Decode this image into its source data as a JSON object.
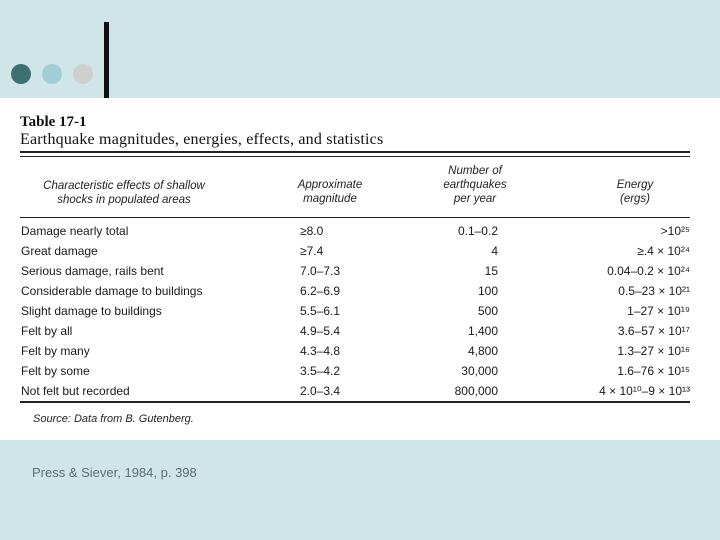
{
  "slide": {
    "caption": "Press & Siever, 1984, p. 398"
  },
  "table": {
    "label": "Table 17-1",
    "title": "Earthquake magnitudes, energies, effects, and statistics",
    "headers": {
      "effects_line1": "Characteristic effects of shallow",
      "effects_line2": "shocks in populated areas",
      "magnitude_line1": "Approximate",
      "magnitude_line2": "magnitude",
      "number_line1": "Number of",
      "number_line2": "earthquakes",
      "number_line3": "per year",
      "energy_line1": "Energy",
      "energy_line2": "(ergs)"
    },
    "rows": [
      {
        "effect": "Damage nearly total",
        "magnitude": "≥8.0",
        "number": "0.1–0.2",
        "energy": ">10²⁵"
      },
      {
        "effect": "Great damage",
        "magnitude": "≥7.4",
        "number": "4",
        "energy": "≥.4 × 10²⁴"
      },
      {
        "effect": "Serious damage, rails bent",
        "magnitude": "7.0–7.3",
        "number": "15",
        "energy": "0.04–0.2 × 10²⁴"
      },
      {
        "effect": "Considerable damage to buildings",
        "magnitude": "6.2–6.9",
        "number": "100",
        "energy": "0.5–23 × 10²¹"
      },
      {
        "effect": "Slight damage to buildings",
        "magnitude": "5.5–6.1",
        "number": "500",
        "energy": "1–27 × 10¹⁹"
      },
      {
        "effect": "Felt by all",
        "magnitude": "4.9–5.4",
        "number": "1,400",
        "energy": "3.6–57 × 10¹⁷"
      },
      {
        "effect": "Felt by many",
        "magnitude": "4.3–4.8",
        "number": "4,800",
        "energy": "1.3–27 × 10¹⁶"
      },
      {
        "effect": "Felt by some",
        "magnitude": "3.5–4.2",
        "number": "30,000",
        "energy": "1.6–76 × 10¹⁵"
      },
      {
        "effect": "Not felt but recorded",
        "magnitude": "2.0–3.4",
        "number": "800,000",
        "energy": "4 × 10¹⁰–9 × 10¹³"
      }
    ],
    "source": "Source: Data from B. Gutenberg."
  }
}
